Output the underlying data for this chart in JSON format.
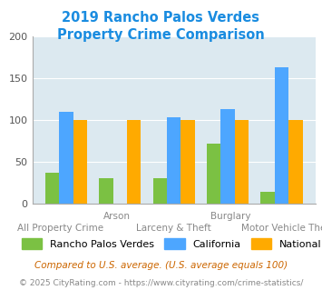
{
  "title_line1": "2019 Rancho Palos Verdes",
  "title_line2": "Property Crime Comparison",
  "title_color": "#1a8ce0",
  "categories": [
    "All Property Crime",
    "Arson",
    "Larceny & Theft",
    "Burglary",
    "Motor Vehicle Theft"
  ],
  "x_labels_top": [
    "",
    "Arson",
    "",
    "Burglary",
    ""
  ],
  "x_labels_bottom": [
    "All Property Crime",
    "",
    "Larceny & Theft",
    "",
    "Motor Vehicle Theft"
  ],
  "rpv_values": [
    37,
    31,
    31,
    72,
    15
  ],
  "ca_values": [
    110,
    0,
    103,
    113,
    163
  ],
  "nat_values": [
    100,
    100,
    100,
    100,
    100
  ],
  "arson_ca_skip": true,
  "rpv_color": "#7bc143",
  "ca_color": "#4da6ff",
  "nat_color": "#ffaa00",
  "ylim": [
    0,
    200
  ],
  "yticks": [
    0,
    50,
    100,
    150,
    200
  ],
  "background_color": "#dce9f0",
  "legend_labels": [
    "Rancho Palos Verdes",
    "California",
    "National"
  ],
  "footnote1": "Compared to U.S. average. (U.S. average equals 100)",
  "footnote2": "© 2025 CityRating.com - https://www.cityrating.com/crime-statistics/",
  "footnote1_color": "#cc6600",
  "footnote2_color": "#888888"
}
